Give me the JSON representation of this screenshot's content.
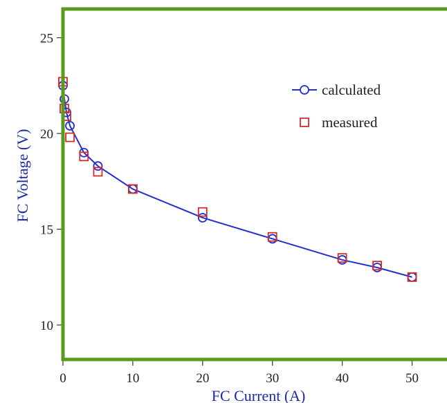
{
  "chart_data": {
    "type": "line",
    "xlabel": "FC Current (A)",
    "ylabel": "FC Voltage (V)",
    "xlim": [
      0,
      55
    ],
    "ylim": [
      8.2,
      26.5
    ],
    "xticks": [
      0,
      10,
      20,
      30,
      40,
      50
    ],
    "yticks": [
      10,
      15,
      20,
      25
    ],
    "legend_position": "top-right",
    "grid": false,
    "series": [
      {
        "name": "calculated",
        "color": "#1f2fd0",
        "marker": "circle",
        "line": true,
        "x": [
          0,
          0.2,
          0.5,
          1,
          3,
          5,
          10,
          20,
          30,
          40,
          45,
          50
        ],
        "y": [
          22.5,
          21.8,
          21.1,
          20.4,
          19.0,
          18.3,
          17.1,
          15.6,
          14.5,
          13.4,
          13.0,
          12.5
        ]
      },
      {
        "name": "measured",
        "color": "#d42a2a",
        "marker": "square",
        "line": false,
        "x": [
          0,
          0.2,
          0.5,
          1,
          3,
          5,
          10,
          20,
          30,
          40,
          45,
          50
        ],
        "y": [
          22.7,
          21.3,
          20.9,
          19.8,
          18.8,
          18.0,
          17.1,
          15.9,
          14.6,
          13.5,
          13.1,
          12.5
        ]
      }
    ],
    "frame_color": "#5a9a1e",
    "axis_color": "#333333"
  }
}
